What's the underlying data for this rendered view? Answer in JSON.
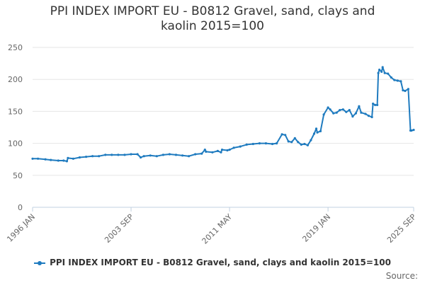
{
  "chart": {
    "title_line1": "PPI INDEX IMPORT EU - B0812 Gravel, sand, clays and",
    "title_line2": "kaolin 2015=100",
    "source_label": "Source:"
  },
  "colors": {
    "series": "#1f7bbf",
    "grid": "#e6e6e6",
    "axis_text": "#666666"
  },
  "chart_data": {
    "type": "line",
    "title": "PPI INDEX IMPORT EU - B0812 Gravel, sand, clays and kaolin 2015=100",
    "xlabel": "",
    "ylabel": "",
    "ylim": [
      0,
      250
    ],
    "yticks": [
      0,
      50,
      100,
      150,
      200,
      250
    ],
    "xticks": [
      "1996 JAN",
      "2003 SEP",
      "2011 MAY",
      "2019 JAN",
      "2025 SEP"
    ],
    "grid": true,
    "legend_position": "bottom",
    "series": [
      {
        "name": "PPI INDEX IMPORT EU - B0812 Gravel, sand, clays and kaolin 2015=100",
        "points": [
          [
            "1996-01",
            76
          ],
          [
            "1996-06",
            76
          ],
          [
            "1997-01",
            75
          ],
          [
            "1997-06",
            74
          ],
          [
            "1998-01",
            73
          ],
          [
            "1998-06",
            73
          ],
          [
            "1998-09",
            72
          ],
          [
            "1998-10",
            77
          ],
          [
            "1999-03",
            76
          ],
          [
            "1999-09",
            78
          ],
          [
            "2000-03",
            79
          ],
          [
            "2000-09",
            80
          ],
          [
            "2001-03",
            80
          ],
          [
            "2001-09",
            82
          ],
          [
            "2002-03",
            82
          ],
          [
            "2002-09",
            82
          ],
          [
            "2003-03",
            82
          ],
          [
            "2003-09",
            83
          ],
          [
            "2004-03",
            83
          ],
          [
            "2004-06",
            78
          ],
          [
            "2004-09",
            80
          ],
          [
            "2005-03",
            81
          ],
          [
            "2005-09",
            80
          ],
          [
            "2006-03",
            82
          ],
          [
            "2006-09",
            83
          ],
          [
            "2007-03",
            82
          ],
          [
            "2007-09",
            81
          ],
          [
            "2008-03",
            80
          ],
          [
            "2008-09",
            83
          ],
          [
            "2009-03",
            84
          ],
          [
            "2009-06",
            90
          ],
          [
            "2009-07",
            87
          ],
          [
            "2010-01",
            86
          ],
          [
            "2010-06",
            88
          ],
          [
            "2010-09",
            86
          ],
          [
            "2010-10",
            90
          ],
          [
            "2011-03",
            89
          ],
          [
            "2011-05",
            90
          ],
          [
            "2011-09",
            93
          ],
          [
            "2012-03",
            95
          ],
          [
            "2012-09",
            98
          ],
          [
            "2013-03",
            99
          ],
          [
            "2013-09",
            100
          ],
          [
            "2014-03",
            100
          ],
          [
            "2014-09",
            99
          ],
          [
            "2015-01",
            100
          ],
          [
            "2015-06",
            114
          ],
          [
            "2015-09",
            113
          ],
          [
            "2015-12",
            103
          ],
          [
            "2016-03",
            102
          ],
          [
            "2016-06",
            108
          ],
          [
            "2016-09",
            102
          ],
          [
            "2016-12",
            98
          ],
          [
            "2017-03",
            99
          ],
          [
            "2017-06",
            97
          ],
          [
            "2017-09",
            105
          ],
          [
            "2017-12",
            115
          ],
          [
            "2018-02",
            123
          ],
          [
            "2018-03",
            117
          ],
          [
            "2018-06",
            119
          ],
          [
            "2018-09",
            145
          ],
          [
            "2019-01",
            156
          ],
          [
            "2019-03",
            153
          ],
          [
            "2019-06",
            147
          ],
          [
            "2019-09",
            148
          ],
          [
            "2019-12",
            152
          ],
          [
            "2020-03",
            153
          ],
          [
            "2020-06",
            149
          ],
          [
            "2020-09",
            152
          ],
          [
            "2020-12",
            142
          ],
          [
            "2021-03",
            147
          ],
          [
            "2021-06",
            158
          ],
          [
            "2021-08",
            148
          ],
          [
            "2021-12",
            146
          ],
          [
            "2022-03",
            143
          ],
          [
            "2022-06",
            141
          ],
          [
            "2022-07",
            162
          ],
          [
            "2022-09",
            160
          ],
          [
            "2022-11",
            160
          ],
          [
            "2022-12",
            210
          ],
          [
            "2023-01",
            215
          ],
          [
            "2023-03",
            212
          ],
          [
            "2023-04",
            219
          ],
          [
            "2023-06",
            210
          ],
          [
            "2023-09",
            209
          ],
          [
            "2023-12",
            203
          ],
          [
            "2024-03",
            199
          ],
          [
            "2024-06",
            198
          ],
          [
            "2024-09",
            197
          ],
          [
            "2024-11",
            183
          ],
          [
            "2025-01",
            182
          ],
          [
            "2025-04",
            185
          ],
          [
            "2025-06",
            120
          ],
          [
            "2025-07",
            120
          ],
          [
            "2025-09",
            121
          ]
        ]
      }
    ]
  }
}
